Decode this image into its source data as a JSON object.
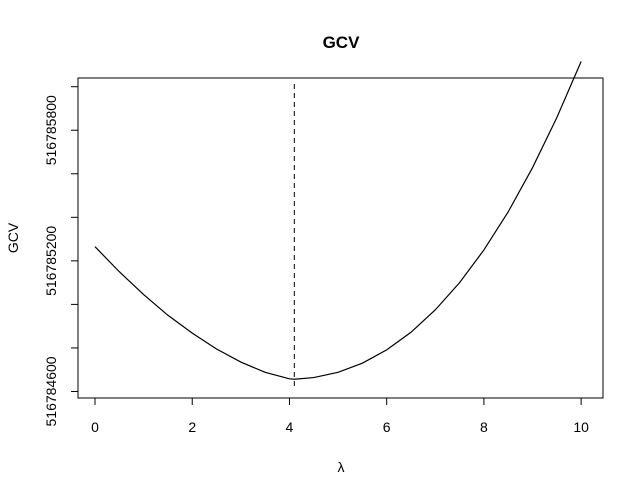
{
  "chart_data": {
    "type": "line",
    "title": "GCV",
    "xlabel": "λ",
    "ylabel": "GCV",
    "xlim": [
      -0.35,
      10.45
    ],
    "ylim": [
      516784570,
      516786040
    ],
    "x_ticks": [
      0,
      2,
      4,
      6,
      8,
      10
    ],
    "x_tick_labels": [
      "0",
      "2",
      "4",
      "6",
      "8",
      "10"
    ],
    "y_ticks": [
      516784600,
      516784800,
      516785000,
      516785200,
      516785400,
      516785600,
      516785800,
      516786000
    ],
    "y_tick_labels": [
      "516784600",
      "",
      "",
      "516785200",
      "",
      "",
      "516785800",
      ""
    ],
    "grid": false,
    "series": [
      {
        "x": [
          0,
          0.5,
          1,
          1.5,
          2,
          2.5,
          3,
          3.5,
          4,
          4.1,
          4.5,
          5,
          5.5,
          6,
          6.5,
          7,
          7.5,
          8,
          8.5,
          9,
          9.5,
          10
        ],
        "y": [
          516785265,
          516785150,
          516785045,
          516784950,
          516784868,
          516784795,
          516784735,
          516784688,
          516784658,
          516784656,
          516784664,
          516784688,
          516784730,
          516784791,
          516784872,
          516784975,
          516785100,
          516785250,
          516785425,
          516785628,
          516785858,
          516786116
        ],
        "style": "solid",
        "color": "#000000"
      }
    ],
    "vline": {
      "x": 4.1,
      "style": "dashed",
      "color": "#000000"
    }
  }
}
